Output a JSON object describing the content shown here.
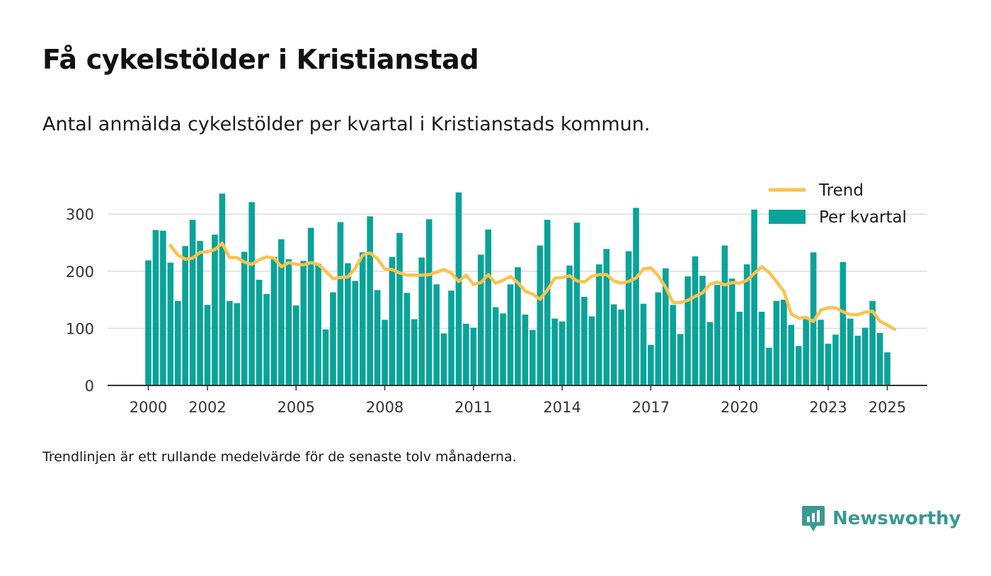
{
  "header": {
    "title": "Få cykelstölder i Kristianstad",
    "subtitle": "Antal anmälda cykelstölder per kvartal i Kristianstads kommun."
  },
  "footer": {
    "note": "Trendlinjen är ett rullande medelvärde för de senaste tolv månaderna.",
    "brand": "Newsworthy"
  },
  "icons": {
    "brand": "newsworthy-logo-icon"
  },
  "colors": {
    "bars": "#0aa399",
    "trend": "#fcc24c",
    "grid": "#dddddd",
    "axis": "#333333",
    "brand": "#3a9a92"
  },
  "chart_data": {
    "type": "bar",
    "xlabel": "",
    "ylabel": "",
    "ylim": [
      0,
      360
    ],
    "yticks": [
      0,
      100,
      200,
      300
    ],
    "grid": true,
    "legend_position": "top-right",
    "x_start_year": 2000,
    "xticks": [
      "2000",
      "2002",
      "2005",
      "2008",
      "2011",
      "2014",
      "2017",
      "2020",
      "2023",
      "2025"
    ],
    "series": [
      {
        "name": "Per kvartal",
        "values": [
          219,
          272,
          271,
          215,
          148,
          244,
          290,
          253,
          141,
          264,
          336,
          148,
          144,
          234,
          321,
          185,
          160,
          225,
          256,
          221,
          140,
          218,
          276,
          213,
          98,
          163,
          286,
          214,
          183,
          233,
          296,
          167,
          115,
          225,
          267,
          162,
          116,
          224,
          291,
          177,
          91,
          166,
          338,
          108,
          101,
          229,
          273,
          137,
          126,
          177,
          207,
          124,
          97,
          245,
          290,
          117,
          112,
          210,
          285,
          155,
          121,
          212,
          239,
          142,
          133,
          235,
          311,
          143,
          71,
          163,
          205,
          141,
          90,
          191,
          226,
          192,
          111,
          176,
          245,
          187,
          129,
          212,
          308,
          129,
          66,
          148,
          150,
          106,
          69,
          120,
          233,
          115,
          73,
          89,
          216,
          117,
          87,
          101,
          148,
          92,
          58
        ]
      },
      {
        "name": "Trend",
        "values": [
          245,
          228,
          221,
          223,
          233,
          234,
          238,
          249,
          224,
          224,
          216,
          212,
          220,
          225,
          223,
          208,
          215,
          212,
          211,
          215,
          212,
          200,
          187,
          189,
          190,
          205,
          228,
          232,
          222,
          204,
          203,
          197,
          193,
          193,
          193,
          194,
          198,
          203,
          197,
          182,
          193,
          177,
          180,
          194,
          179,
          184,
          191,
          180,
          165,
          160,
          151,
          167,
          188,
          189,
          192,
          183,
          181,
          191,
          194,
          194,
          183,
          179,
          182,
          188,
          204,
          206,
          192,
          172,
          145,
          145,
          149,
          156,
          162,
          177,
          181,
          176,
          180,
          179,
          184,
          196,
          208,
          198,
          182,
          165,
          125,
          118,
          119,
          112,
          132,
          136,
          136,
          129,
          124,
          124,
          128,
          130,
          112,
          106,
          98
        ]
      }
    ]
  }
}
